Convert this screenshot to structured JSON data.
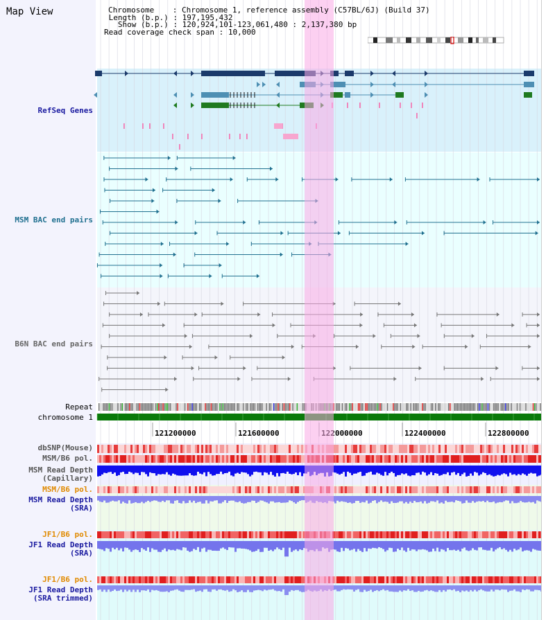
{
  "app": {
    "title": "Map View"
  },
  "info": {
    "chromosome_key": "Chromosome",
    "chromosome_val": "Chromosome 1, reference assembly (C57BL/6J) (Build 37)",
    "length_key": "Length (b.p.)",
    "length_val": "197,195,432",
    "show_key": "Show (b.p.)",
    "show_val": "120,924,101-123,061,480 : 2,137,380 bp",
    "coverage_key": "Read coverage check span",
    "coverage_val": "10,000"
  },
  "tracks": {
    "refseq": "RefSeq Genes",
    "msm_bac": "MSM BAC end pairs",
    "b6n_bac": "B6N BAC end pairs",
    "repeat": "Repeat",
    "chromosome": "chromosome 1",
    "dbsnp": "dbSNP(Mouse)",
    "msm_b6_pol": "MSM/B6 pol.",
    "msm_rd_cap_1": "MSM Read Depth",
    "msm_rd_cap_2": "(Capillary)",
    "msm_b6_pol_2": "MSM/B6 pol.",
    "msm_rd_sra_1": "MSM Read Depth",
    "msm_rd_sra_2": "(SRA)",
    "jf1_b6_pol": "JF1/B6 pol.",
    "jf1_rd_sra_1": "JF1 Read Depth",
    "jf1_rd_sra_2": "(SRA)",
    "jf1_b6_pol_2": "JF1/B6 pol.",
    "jf1_rd_trim_1": "JF1 Read Depth",
    "jf1_rd_trim_2": "(SRA trimmed)"
  },
  "axis": {
    "ticks": [
      "121200000",
      "121600000",
      "122000000",
      "122400000",
      "122800000"
    ]
  },
  "colors": {
    "gene_navy": "#1b3a6b",
    "gene_blue": "#4e8fb3",
    "gene_green": "#1f7a1f",
    "msm_line": "#1f6f8f",
    "b6n_line": "#777777",
    "chromosome_green": "#0a7a0a",
    "highlight": "#f9b4e8"
  }
}
